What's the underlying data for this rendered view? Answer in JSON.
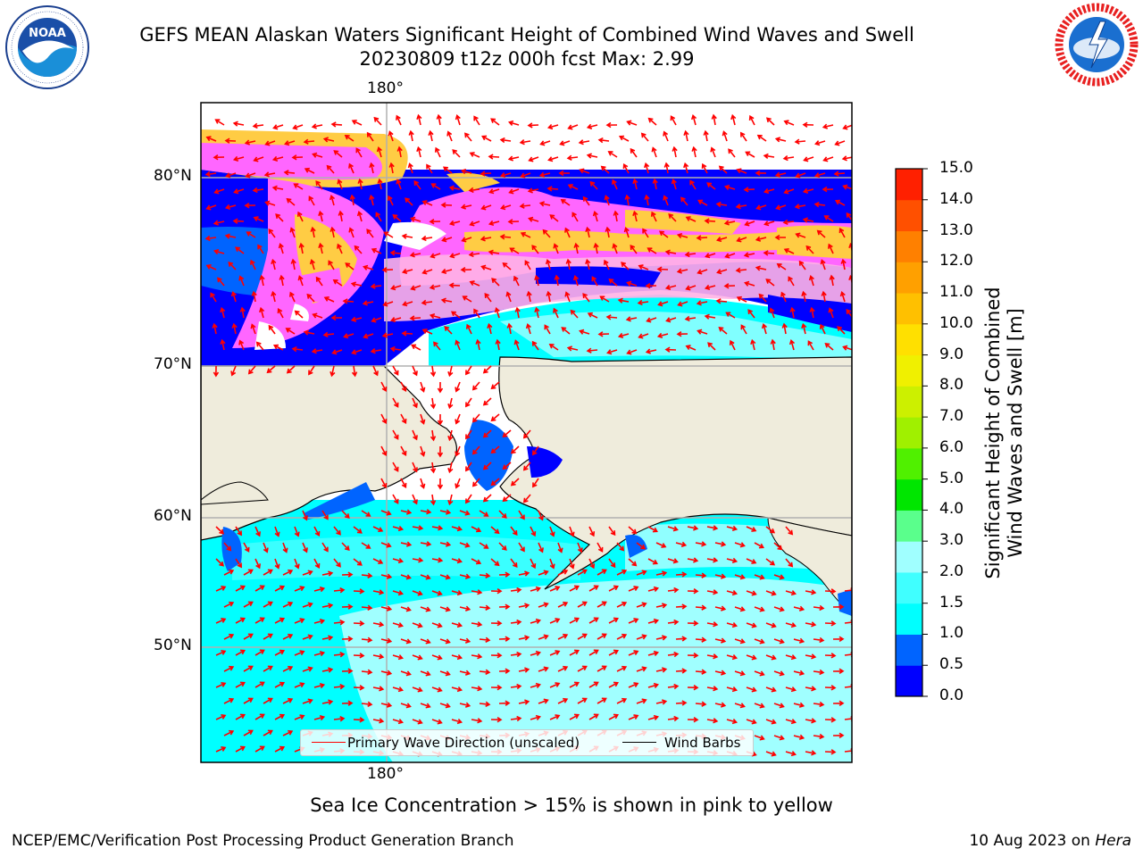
{
  "header": {
    "title_line1": "GEFS MEAN Alaskan Waters Significant Height of Combined Wind Waves and Swell",
    "title_line2": "20230809 t12z 000h fcst   Max: 2.99"
  },
  "logos": {
    "noara_text": "NOAA",
    "noara_ring": "NATIONAL OCEANIC AND ATMOSPHERIC ADMINISTRATION · U.S. DEPARTMENT OF COMMERCE",
    "nws_ring": "NATIONAL WEATHER SERVICE"
  },
  "map": {
    "lon_label_top": "180°",
    "lon_label_bottom": "180°",
    "lat_labels": [
      "80°N",
      "70°N",
      "60°N",
      "50°N"
    ],
    "legend": {
      "wave_label": "Primary Wave Direction (unscaled)",
      "wave_color": "#ff0000",
      "wind_label": "Wind Barbs",
      "wind_color": "#000000"
    },
    "land_color": "#efecdc",
    "ice_colors": [
      "#ff66ff",
      "#ffb3e6",
      "#ffcc44"
    ]
  },
  "colorbar": {
    "label_line1": "Significant Height of Combined",
    "label_line2": "Wind Waves and Swell [m]",
    "ticks": [
      "0.0",
      "0.5",
      "1.0",
      "1.5",
      "2.0",
      "3.0",
      "4.0",
      "5.0",
      "6.0",
      "7.0",
      "8.0",
      "9.0",
      "10.0",
      "11.0",
      "12.0",
      "13.0",
      "14.0",
      "15.0"
    ],
    "colors": [
      "#0000ff",
      "#0064ff",
      "#00ffff",
      "#40ffff",
      "#a0ffff",
      "#5aff8c",
      "#00e600",
      "#50f000",
      "#a0f000",
      "#ccf000",
      "#f0f000",
      "#ffe000",
      "#ffc000",
      "#ffa000",
      "#ff8000",
      "#ff5000",
      "#ff2000"
    ]
  },
  "note": "Sea Ice Concentration > 15% is shown in pink to yellow",
  "footer": {
    "left": "NCEP/EMC/Verification Post Processing Product Generation Branch",
    "date": "10 Aug 2023 on ",
    "host": "Hera"
  }
}
